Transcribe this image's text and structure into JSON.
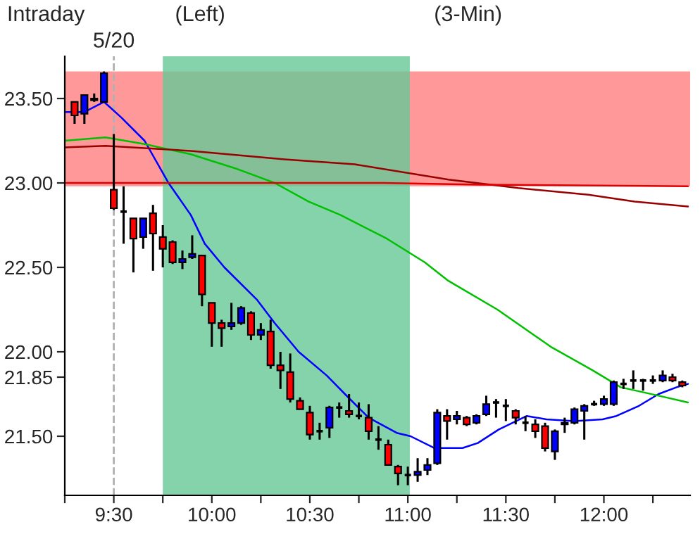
{
  "chart_data": {
    "type": "candlestick",
    "title": "Intraday",
    "annotations": [
      "(Left)",
      "(3-Min)",
      "5/20"
    ],
    "x": [
      9.3,
      9.35,
      9.4,
      9.45,
      9.5,
      9.55,
      9.6,
      9.65,
      9.7,
      9.75,
      9.8,
      9.85,
      9.9,
      9.95,
      10.0,
      10.05,
      10.1,
      10.15,
      10.2,
      10.25,
      10.3,
      10.35,
      10.4,
      10.45,
      10.5,
      10.55,
      10.6,
      10.65,
      10.7,
      10.75,
      10.8,
      10.85,
      10.9,
      10.95,
      11.0,
      11.05,
      11.1,
      11.15,
      11.2,
      11.25,
      11.3,
      11.35,
      11.4,
      11.45,
      11.5,
      11.55,
      11.6,
      11.65,
      11.7,
      11.75,
      11.8,
      11.85,
      11.9,
      11.95,
      12.0,
      12.05,
      12.1,
      12.15,
      12.2,
      12.25,
      12.3,
      12.35,
      12.4
    ],
    "ohlc": [
      [
        23.48,
        23.48,
        23.35,
        23.4
      ],
      [
        23.41,
        23.52,
        23.35,
        23.52
      ],
      [
        23.49,
        23.53,
        23.48,
        23.5
      ],
      [
        23.48,
        23.66,
        23.48,
        23.65
      ],
      [
        22.96,
        23.29,
        22.84,
        22.85
      ],
      [
        22.83,
        22.98,
        22.64,
        22.83
      ],
      [
        22.79,
        22.79,
        22.47,
        22.67
      ],
      [
        22.68,
        22.79,
        22.61,
        22.79
      ],
      [
        22.82,
        22.87,
        22.48,
        22.7
      ],
      [
        22.68,
        22.75,
        22.5,
        22.61
      ],
      [
        22.65,
        22.66,
        22.52,
        22.53
      ],
      [
        22.53,
        22.6,
        22.49,
        22.55
      ],
      [
        22.56,
        22.69,
        22.55,
        22.58
      ],
      [
        22.57,
        22.57,
        22.27,
        22.34
      ],
      [
        22.29,
        22.29,
        22.03,
        22.17
      ],
      [
        22.17,
        22.19,
        22.03,
        22.14
      ],
      [
        22.15,
        22.29,
        22.13,
        22.17
      ],
      [
        22.17,
        22.27,
        22.16,
        22.26
      ],
      [
        22.23,
        22.24,
        22.07,
        22.1
      ],
      [
        22.1,
        22.17,
        22.07,
        22.13
      ],
      [
        22.12,
        22.19,
        21.9,
        21.92
      ],
      [
        21.92,
        22.0,
        21.78,
        21.89
      ],
      [
        21.88,
        21.99,
        21.7,
        21.72
      ],
      [
        21.71,
        21.73,
        21.66,
        21.66
      ],
      [
        21.64,
        21.68,
        21.48,
        21.51
      ],
      [
        21.53,
        21.58,
        21.48,
        21.53
      ],
      [
        21.55,
        21.68,
        21.49,
        21.67
      ],
      [
        21.67,
        21.7,
        21.61,
        21.67
      ],
      [
        21.65,
        21.75,
        21.61,
        21.63
      ],
      [
        21.62,
        21.7,
        21.6,
        21.62
      ],
      [
        21.61,
        21.69,
        21.48,
        21.53
      ],
      [
        21.48,
        21.56,
        21.42,
        21.48
      ],
      [
        21.45,
        21.48,
        21.33,
        21.33
      ],
      [
        21.32,
        21.33,
        21.21,
        21.28
      ],
      [
        21.27,
        21.32,
        21.21,
        21.27
      ],
      [
        21.27,
        21.37,
        21.23,
        21.29
      ],
      [
        21.3,
        21.37,
        21.27,
        21.33
      ],
      [
        21.34,
        21.66,
        21.33,
        21.64
      ],
      [
        21.62,
        21.66,
        21.48,
        21.59
      ],
      [
        21.6,
        21.65,
        21.57,
        21.62
      ],
      [
        21.61,
        21.62,
        21.56,
        21.57
      ],
      [
        21.58,
        21.63,
        21.57,
        21.62
      ],
      [
        21.63,
        21.74,
        21.62,
        21.69
      ],
      [
        21.7,
        21.72,
        21.61,
        21.7
      ],
      [
        21.68,
        21.72,
        21.59,
        21.68
      ],
      [
        21.65,
        21.66,
        21.57,
        21.61
      ],
      [
        21.58,
        21.62,
        21.53,
        21.58
      ],
      [
        21.57,
        21.6,
        21.49,
        21.53
      ],
      [
        21.56,
        21.58,
        21.41,
        21.43
      ],
      [
        21.41,
        21.54,
        21.36,
        21.53
      ],
      [
        21.57,
        21.61,
        21.52,
        21.58
      ],
      [
        21.58,
        21.67,
        21.57,
        21.66
      ],
      [
        21.65,
        21.69,
        21.48,
        21.68
      ],
      [
        21.69,
        21.71,
        21.68,
        21.69
      ],
      [
        21.69,
        21.74,
        21.68,
        21.72
      ],
      [
        21.69,
        21.83,
        21.68,
        21.82
      ],
      [
        21.81,
        21.84,
        21.78,
        21.81
      ],
      [
        21.83,
        21.89,
        21.78,
        21.83
      ],
      [
        21.83,
        21.84,
        21.77,
        21.83
      ],
      [
        21.83,
        21.86,
        21.81,
        21.83
      ],
      [
        21.83,
        21.89,
        21.82,
        21.86
      ],
      [
        21.85,
        21.87,
        21.82,
        21.83
      ],
      [
        21.82,
        21.83,
        21.79,
        21.8
      ]
    ],
    "colors": [
      "#ff0000",
      "#0000ff",
      "#000000",
      "#0000ff",
      "#ff0000",
      "#000000",
      "#ff0000",
      "#0000ff",
      "#ff0000",
      "#ff0000",
      "#ff0000",
      "#0000ff",
      "#0000ff",
      "#ff0000",
      "#ff0000",
      "#ff0000",
      "#0000ff",
      "#0000ff",
      "#ff0000",
      "#0000ff",
      "#ff0000",
      "#ff0000",
      "#ff0000",
      "#ff0000",
      "#ff0000",
      "#000000",
      "#0000ff",
      "#000000",
      "#ff0000",
      "#000000",
      "#ff0000",
      "#000000",
      "#ff0000",
      "#ff0000",
      "#000000",
      "#0000ff",
      "#0000ff",
      "#0000ff",
      "#ff0000",
      "#0000ff",
      "#ff0000",
      "#0000ff",
      "#0000ff",
      "#000000",
      "#000000",
      "#ff0000",
      "#000000",
      "#ff0000",
      "#ff0000",
      "#0000ff",
      "#0000ff",
      "#0000ff",
      "#0000ff",
      "#000000",
      "#0000ff",
      "#0000ff",
      "#000000",
      "#000000",
      "#000000",
      "#000000",
      "#0000ff",
      "#ff0000",
      "#ff0000"
    ],
    "series": [
      {
        "type": "line",
        "color": "#0000ff",
        "x": [
          9.25,
          9.35,
          9.45,
          9.536,
          9.657,
          9.779,
          9.893,
          9.964,
          10.064,
          10.229,
          10.321,
          10.443,
          10.586,
          10.679,
          10.8,
          10.943,
          11.014,
          11.136,
          11.279,
          11.357,
          11.464,
          11.607,
          11.707,
          11.85,
          11.993,
          12.064,
          12.179,
          12.279,
          12.371,
          12.429
        ],
        "values": [
          23.42,
          23.42,
          23.48,
          23.39,
          23.25,
          23.0,
          22.81,
          22.64,
          22.5,
          22.31,
          22.17,
          22.0,
          21.86,
          21.75,
          21.61,
          21.52,
          21.5,
          21.43,
          21.43,
          21.46,
          21.54,
          21.62,
          21.6,
          21.59,
          21.6,
          21.62,
          21.68,
          21.75,
          21.79,
          21.81
        ]
      },
      {
        "type": "line",
        "color": "#00c000",
        "x": [
          9.25,
          9.457,
          9.657,
          9.893,
          10.136,
          10.321,
          10.493,
          10.657,
          10.893,
          11.086,
          11.207,
          11.457,
          11.729,
          11.943,
          12.086,
          12.279,
          12.429
        ],
        "values": [
          23.25,
          23.27,
          23.23,
          23.17,
          23.08,
          23.0,
          22.89,
          22.81,
          22.67,
          22.53,
          22.42,
          22.25,
          22.03,
          21.89,
          21.79,
          21.74,
          21.7
        ]
      },
      {
        "type": "line",
        "color": "#990000",
        "x": [
          9.25,
          9.457,
          9.893,
          10.371,
          10.729,
          11.207,
          11.564,
          11.921,
          12.157,
          12.429
        ],
        "values": [
          23.21,
          23.22,
          23.19,
          23.14,
          23.11,
          23.02,
          22.97,
          22.93,
          22.89,
          22.86
        ]
      },
      {
        "type": "line",
        "color": "#e00000",
        "x": [
          9.25,
          10.871,
          11.371,
          12.429
        ],
        "values": [
          23.0,
          23.0,
          22.99,
          22.98
        ]
      }
    ],
    "ref_lines": [
      {
        "axis": "x",
        "value": 9.5,
        "color": "#b0b0b0",
        "line_style": "dashed"
      }
    ],
    "bands": [
      {
        "axis": "y",
        "from": 22.98,
        "to": 23.66,
        "color": "#ff8080"
      },
      {
        "axis": "x",
        "from": 9.75,
        "to": 11.01,
        "color": "#66c896"
      }
    ],
    "xlim": [
      9.25,
      12.44
    ],
    "xticks": [
      {
        "value": 9.25,
        "label": null
      },
      {
        "value": 9.5,
        "label": "9:30"
      },
      {
        "value": 9.75,
        "label": null
      },
      {
        "value": 10.0,
        "label": "10:00"
      },
      {
        "value": 10.25,
        "label": null
      },
      {
        "value": 10.5,
        "label": "10:30"
      },
      {
        "value": 10.75,
        "label": null
      },
      {
        "value": 11.0,
        "label": "11:00"
      },
      {
        "value": 11.25,
        "label": null
      },
      {
        "value": 11.5,
        "label": "11:30"
      },
      {
        "value": 11.75,
        "label": null
      },
      {
        "value": 12.0,
        "label": "12:00"
      },
      {
        "value": 12.25,
        "label": null
      }
    ],
    "ylim": [
      21.15,
      23.75
    ],
    "yticks": [
      {
        "value": 21.5,
        "label": "21.50"
      },
      {
        "value": 21.85,
        "label": "21.85"
      },
      {
        "value": 22.0,
        "label": "22.00"
      },
      {
        "value": 22.5,
        "label": "22.50"
      },
      {
        "value": 23.0,
        "label": "23.00"
      },
      {
        "value": 23.5,
        "label": "23.50"
      }
    ],
    "grid": false,
    "legend": false
  }
}
